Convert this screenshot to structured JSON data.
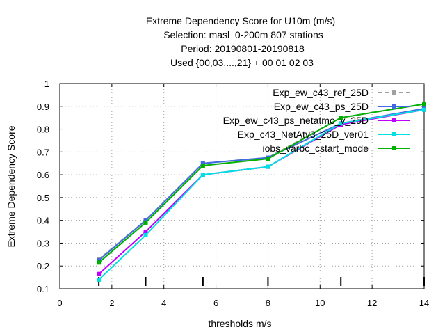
{
  "chart_data": {
    "type": "line",
    "title_lines": [
      "Extreme Dependency Score  for U10m (m/s)",
      "Selection: masl_0-200m    807 stations",
      "Period: 20190801-20190818",
      "Used {00,03,...,21} + 00 01 02 03"
    ],
    "xlabel": "thresholds m/s",
    "ylabel": "Extreme Dependency Score",
    "xlim": [
      0,
      14
    ],
    "ylim": [
      0.1,
      1
    ],
    "xticks": [
      "0",
      "2",
      "4",
      "6",
      "8",
      "10",
      "12",
      "14"
    ],
    "yticks": [
      "0.1",
      "0.2",
      "0.3",
      "0.4",
      "0.5",
      "0.6",
      "0.7",
      "0.8",
      "0.9",
      "1"
    ],
    "x_tick_values": [
      0,
      2,
      4,
      6,
      8,
      10,
      12,
      14
    ],
    "y_tick_values": [
      0.1,
      0.2,
      0.3,
      0.4,
      0.5,
      0.6,
      0.7,
      0.8,
      0.9,
      1.0
    ],
    "threshold_marks": [
      1.5,
      3.3,
      5.5,
      8,
      10.8,
      14
    ],
    "grid": "dotted",
    "legend_position": "top-right",
    "x": [
      1.5,
      3.3,
      5.5,
      8,
      10.8,
      14
    ],
    "series": [
      {
        "name": "Exp_ew_c43_ref_25D",
        "color": "#a0a0a0",
        "dashed": true,
        "values": [
          0.23,
          0.4,
          0.65,
          0.675,
          0.85,
          0.91
        ]
      },
      {
        "name": "Exp_ew_c43_ps_25D",
        "color": "#4169e1",
        "dashed": false,
        "values": [
          0.225,
          0.4,
          0.65,
          0.675,
          0.825,
          0.89
        ]
      },
      {
        "name": "Exp_ew_c43_ps_netatmo_v_25D",
        "color": "#c000ff",
        "dashed": false,
        "values": [
          0.165,
          0.35,
          0.6,
          0.635,
          0.82,
          0.885
        ]
      },
      {
        "name": "Exp_c43_NetAtv3_25D_ver01",
        "color": "#00e0e0",
        "dashed": false,
        "values": [
          0.14,
          0.335,
          0.6,
          0.635,
          0.825,
          0.885
        ]
      },
      {
        "name": "iobs_varbc_cstart_mode",
        "color": "#00b000",
        "dashed": false,
        "values": [
          0.215,
          0.39,
          0.64,
          0.67,
          0.85,
          0.91
        ]
      }
    ]
  }
}
